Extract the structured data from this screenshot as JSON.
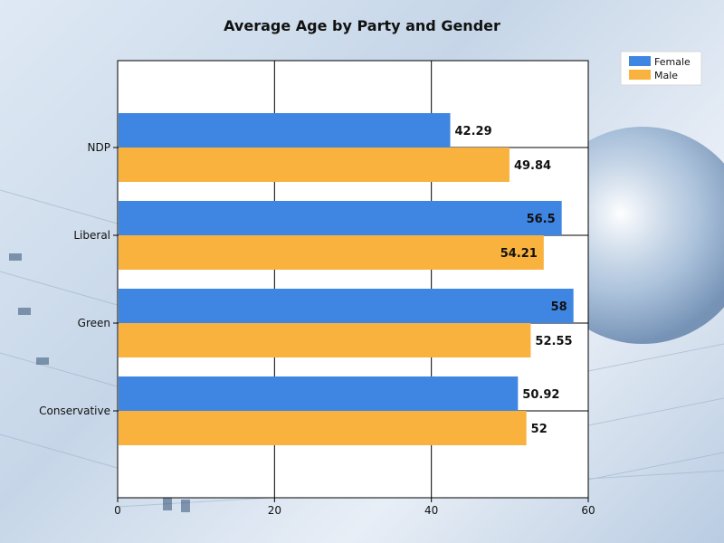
{
  "chart_data": {
    "type": "bar",
    "orientation": "horizontal",
    "title": "Average Age by Party and Gender",
    "categories": [
      "NDP",
      "Liberal",
      "Green",
      "Conservative"
    ],
    "series": [
      {
        "name": "Female",
        "color": "#3f86e3",
        "values": [
          42.29,
          56.5,
          58,
          50.92
        ]
      },
      {
        "name": "Male",
        "color": "#f9b23e",
        "values": [
          49.84,
          54.21,
          52.55,
          52
        ]
      }
    ],
    "data_labels": {
      "Female": [
        "42.29",
        "56.5",
        "58",
        "50.92"
      ],
      "Male": [
        "49.84",
        "54.21",
        "52.55",
        "52"
      ]
    },
    "xlim": [
      0,
      60
    ],
    "x_ticks": [
      0,
      20,
      40,
      60
    ],
    "x_tick_labels": [
      "0",
      "20",
      "40",
      "60"
    ],
    "grid": true,
    "legend_position": "top-right"
  }
}
